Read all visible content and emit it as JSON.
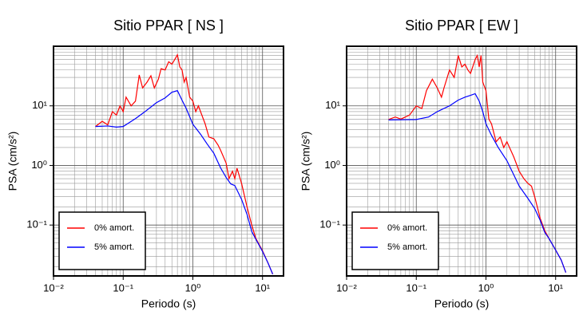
{
  "chart_data": [
    {
      "type": "line",
      "title": "Sitio PPAR [ NS ]",
      "xlabel": "Periodo (s)",
      "ylabel": "PSA (cm/s²)",
      "log_x": true,
      "log_y": true,
      "grid": true,
      "minor_grid": true,
      "legend": "lower left",
      "xlim": [
        0.01,
        20
      ],
      "ylim": [
        0.014,
        100
      ],
      "xticks": [
        {
          "value": 0.01,
          "label": "10⁻²"
        },
        {
          "value": 0.1,
          "label": "10⁻¹"
        },
        {
          "value": 1,
          "label": "10⁰"
        },
        {
          "value": 10,
          "label": "10¹"
        }
      ],
      "yticks": [
        {
          "value": 0.1,
          "label": "10⁻¹"
        },
        {
          "value": 1,
          "label": "10⁰"
        },
        {
          "value": 10,
          "label": "10¹"
        }
      ],
      "series": [
        {
          "name": "0% amort.",
          "color": "#ff0000",
          "x": [
            0.04,
            0.05,
            0.06,
            0.07,
            0.08,
            0.09,
            0.1,
            0.11,
            0.13,
            0.15,
            0.17,
            0.19,
            0.22,
            0.25,
            0.28,
            0.32,
            0.35,
            0.4,
            0.45,
            0.5,
            0.55,
            0.6,
            0.65,
            0.7,
            0.75,
            0.8,
            0.9,
            1.0,
            1.1,
            1.2,
            1.5,
            1.7,
            2,
            2.3,
            2.5,
            3,
            3.3,
            3.7,
            4,
            4.3,
            5,
            6,
            7,
            8,
            10,
            12,
            14
          ],
          "values": [
            4.5,
            5.5,
            4.8,
            8,
            7,
            10,
            8,
            14,
            10,
            12,
            33,
            20,
            25,
            32,
            20,
            28,
            42,
            40,
            55,
            50,
            60,
            72,
            45,
            40,
            25,
            30,
            14,
            12,
            8,
            10,
            5,
            3,
            2.8,
            2.2,
            1.8,
            1.1,
            0.6,
            0.8,
            0.6,
            0.9,
            0.5,
            0.2,
            0.1,
            0.06,
            0.037,
            0.023,
            0.015
          ]
        },
        {
          "name": "5% amort.",
          "color": "#0000ff",
          "x": [
            0.04,
            0.06,
            0.08,
            0.1,
            0.15,
            0.2,
            0.3,
            0.4,
            0.5,
            0.6,
            0.7,
            0.8,
            1.0,
            1.3,
            1.6,
            2,
            2.5,
            3,
            3.5,
            4,
            5,
            6,
            7,
            8,
            10,
            12,
            14
          ],
          "values": [
            4.5,
            4.6,
            4.4,
            4.5,
            6.1,
            7.8,
            11.3,
            13.6,
            16.9,
            18,
            12.4,
            9.1,
            4.9,
            3.3,
            2.3,
            1.6,
            0.91,
            0.63,
            0.49,
            0.46,
            0.27,
            0.15,
            0.078,
            0.058,
            0.036,
            0.023,
            0.015
          ]
        }
      ]
    },
    {
      "type": "line",
      "title": "Sitio PPAR [ EW ]",
      "xlabel": "Periodo (s)",
      "ylabel": "PSA (cm/s²)",
      "log_x": true,
      "log_y": true,
      "grid": true,
      "minor_grid": true,
      "legend": "lower left",
      "xlim": [
        0.01,
        20
      ],
      "ylim": [
        0.014,
        100
      ],
      "xticks": [
        {
          "value": 0.01,
          "label": "10⁻²"
        },
        {
          "value": 0.1,
          "label": "10⁻¹"
        },
        {
          "value": 1,
          "label": "10⁰"
        },
        {
          "value": 10,
          "label": "10¹"
        }
      ],
      "yticks": [
        {
          "value": 0.1,
          "label": "10⁻¹"
        },
        {
          "value": 1,
          "label": "10⁰"
        },
        {
          "value": 10,
          "label": "10¹"
        }
      ],
      "series": [
        {
          "name": "0% amort.",
          "color": "#ff0000",
          "x": [
            0.04,
            0.05,
            0.06,
            0.08,
            0.1,
            0.12,
            0.14,
            0.17,
            0.2,
            0.23,
            0.25,
            0.3,
            0.35,
            0.4,
            0.45,
            0.5,
            0.55,
            0.6,
            0.7,
            0.75,
            0.8,
            0.85,
            0.9,
            1.0,
            1.1,
            1.2,
            1.4,
            1.6,
            1.8,
            2,
            2.5,
            3,
            3.5,
            4,
            4.5,
            5,
            6,
            7,
            8,
            10,
            12,
            14
          ],
          "values": [
            5.9,
            6.5,
            6,
            7,
            10,
            9,
            18,
            28,
            20,
            14,
            20,
            40,
            30,
            70,
            45,
            50,
            40,
            35,
            60,
            70,
            45,
            70,
            25,
            18,
            6,
            5,
            2.5,
            3,
            2,
            2.5,
            1.4,
            0.8,
            0.6,
            0.5,
            0.45,
            0.3,
            0.13,
            0.08,
            0.06,
            0.038,
            0.026,
            0.016
          ]
        },
        {
          "name": "5% amort.",
          "color": "#0000ff",
          "x": [
            0.04,
            0.1,
            0.15,
            0.2,
            0.3,
            0.4,
            0.5,
            0.6,
            0.7,
            0.8,
            0.9,
            1.0,
            1.2,
            1.5,
            2,
            2.5,
            3,
            4,
            5,
            6,
            7,
            8,
            10,
            12,
            14
          ],
          "values": [
            5.8,
            5.9,
            6.5,
            8,
            10,
            12.5,
            14,
            15,
            16,
            12,
            8,
            5,
            3.2,
            2,
            1.2,
            0.7,
            0.45,
            0.28,
            0.19,
            0.12,
            0.075,
            0.06,
            0.038,
            0.026,
            0.016
          ]
        }
      ]
    }
  ]
}
